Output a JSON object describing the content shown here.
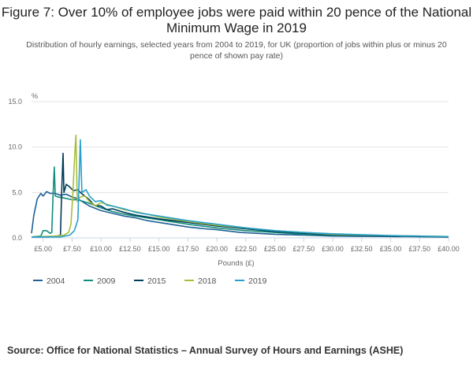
{
  "chart_data": {
    "type": "line",
    "title": "Figure 7: Over 10% of employee jobs were paid within 20 pence of the National Minimum Wage in 2019",
    "subtitle": "Distribution of hourly earnings, selected years from 2004 to 2019, for UK (proportion of jobs within plus or minus 20 pence of shown pay rate)",
    "xlabel": "Pounds (£)",
    "ylabel": "%",
    "xlim": [
      4,
      40
    ],
    "ylim": [
      0,
      15
    ],
    "x_ticks": [
      5,
      7.5,
      10,
      12.5,
      15,
      17.5,
      20,
      22.5,
      25,
      27.5,
      30,
      32.5,
      35,
      37.5,
      40
    ],
    "x_tick_labels": [
      "£5.00",
      "£7.50",
      "£10.00",
      "£12.50",
      "£15.00",
      "£17.50",
      "£20.00",
      "£22.50",
      "£25.00",
      "£27.50",
      "£30.00",
      "£32.50",
      "£35.00",
      "£37.50",
      "£40.00"
    ],
    "y_ticks": [
      0,
      5,
      10,
      15
    ],
    "y_tick_labels": [
      "0.0",
      "5.0",
      "10.0",
      "15.0"
    ],
    "grid": "horizontal",
    "legend": "bottom-left",
    "series": [
      {
        "name": "2004",
        "color": "#206095",
        "points": [
          [
            4,
            0.5
          ],
          [
            4.2,
            2.5
          ],
          [
            4.5,
            4.3
          ],
          [
            4.8,
            4.9
          ],
          [
            5.0,
            4.6
          ],
          [
            5.3,
            5.1
          ],
          [
            5.6,
            4.9
          ],
          [
            6,
            4.9
          ],
          [
            6.5,
            4.7
          ],
          [
            7,
            4.8
          ],
          [
            7.5,
            4.5
          ],
          [
            8,
            4.3
          ],
          [
            8.5,
            3.9
          ],
          [
            9,
            3.5
          ],
          [
            10,
            3.0
          ],
          [
            11,
            2.7
          ],
          [
            12,
            2.4
          ],
          [
            13,
            2.2
          ],
          [
            14,
            1.9
          ],
          [
            15,
            1.7
          ],
          [
            16,
            1.5
          ],
          [
            17.5,
            1.2
          ],
          [
            19,
            1.0
          ],
          [
            20,
            0.9
          ],
          [
            22,
            0.6
          ],
          [
            25,
            0.4
          ],
          [
            27.5,
            0.3
          ],
          [
            30,
            0.2
          ],
          [
            35,
            0.15
          ],
          [
            40,
            0.1
          ]
        ]
      },
      {
        "name": "2009",
        "color": "#118c7b",
        "points": [
          [
            4,
            0.1
          ],
          [
            4.8,
            0.2
          ],
          [
            5.0,
            0.8
          ],
          [
            5.3,
            0.8
          ],
          [
            5.6,
            0.5
          ],
          [
            5.75,
            0.6
          ],
          [
            5.85,
            4.5
          ],
          [
            5.97,
            7.8
          ],
          [
            6.05,
            4.6
          ],
          [
            6.3,
            4.5
          ],
          [
            6.8,
            4.4
          ],
          [
            7.5,
            4.2
          ],
          [
            8,
            4.2
          ],
          [
            8.5,
            4.0
          ],
          [
            9,
            3.8
          ],
          [
            10,
            3.3
          ],
          [
            11,
            2.9
          ],
          [
            12,
            2.6
          ],
          [
            13,
            2.4
          ],
          [
            15,
            2.0
          ],
          [
            17.5,
            1.5
          ],
          [
            20,
            1.1
          ],
          [
            22.5,
            0.8
          ],
          [
            25,
            0.6
          ],
          [
            27.5,
            0.4
          ],
          [
            30,
            0.3
          ],
          [
            35,
            0.2
          ],
          [
            40,
            0.1
          ]
        ]
      },
      {
        "name": "2015",
        "color": "#003c57",
        "points": [
          [
            4,
            0.1
          ],
          [
            5.5,
            0.1
          ],
          [
            6.2,
            0.2
          ],
          [
            6.5,
            0.3
          ],
          [
            6.6,
            5.0
          ],
          [
            6.72,
            9.3
          ],
          [
            6.8,
            5.0
          ],
          [
            7.0,
            5.9
          ],
          [
            7.3,
            5.6
          ],
          [
            7.6,
            5.2
          ],
          [
            8,
            5.3
          ],
          [
            8.3,
            4.9
          ],
          [
            8.6,
            4.6
          ],
          [
            9,
            4.2
          ],
          [
            9.4,
            3.6
          ],
          [
            10,
            3.5
          ],
          [
            10.5,
            3.1
          ],
          [
            11,
            3.2
          ],
          [
            12,
            2.8
          ],
          [
            13,
            2.5
          ],
          [
            15,
            2.1
          ],
          [
            17.5,
            1.7
          ],
          [
            20,
            1.3
          ],
          [
            22.5,
            1.0
          ],
          [
            25,
            0.7
          ],
          [
            27.5,
            0.5
          ],
          [
            30,
            0.35
          ],
          [
            35,
            0.2
          ],
          [
            40,
            0.1
          ]
        ]
      },
      {
        "name": "2018",
        "color": "#a8bd3a",
        "points": [
          [
            4,
            0.1
          ],
          [
            6,
            0.2
          ],
          [
            6.8,
            0.3
          ],
          [
            7.2,
            0.6
          ],
          [
            7.4,
            1.5
          ],
          [
            7.55,
            4.5
          ],
          [
            7.7,
            8.5
          ],
          [
            7.83,
            11.3
          ],
          [
            7.95,
            4.0
          ],
          [
            8.2,
            4.5
          ],
          [
            8.6,
            4.6
          ],
          [
            9,
            4.0
          ],
          [
            9.5,
            3.5
          ],
          [
            10,
            3.9
          ],
          [
            11,
            3.5
          ],
          [
            12,
            3.1
          ],
          [
            13,
            2.9
          ],
          [
            15,
            2.3
          ],
          [
            17.5,
            1.8
          ],
          [
            20,
            1.4
          ],
          [
            22.5,
            1.1
          ],
          [
            25,
            0.8
          ],
          [
            27.5,
            0.6
          ],
          [
            30,
            0.4
          ],
          [
            35,
            0.25
          ],
          [
            40,
            0.15
          ]
        ]
      },
      {
        "name": "2019",
        "color": "#27a0cc",
        "points": [
          [
            4,
            0.1
          ],
          [
            6.5,
            0.1
          ],
          [
            7.3,
            0.3
          ],
          [
            7.7,
            0.8
          ],
          [
            8.0,
            2.0
          ],
          [
            8.1,
            6.0
          ],
          [
            8.21,
            10.8
          ],
          [
            8.35,
            5.0
          ],
          [
            8.7,
            5.3
          ],
          [
            9.0,
            4.6
          ],
          [
            9.5,
            4.0
          ],
          [
            10,
            4.1
          ],
          [
            10.5,
            3.6
          ],
          [
            11,
            3.5
          ],
          [
            12,
            3.2
          ],
          [
            13,
            2.8
          ],
          [
            15,
            2.4
          ],
          [
            17.5,
            1.9
          ],
          [
            20,
            1.5
          ],
          [
            22.5,
            1.1
          ],
          [
            25,
            0.8
          ],
          [
            27.5,
            0.6
          ],
          [
            30,
            0.45
          ],
          [
            35,
            0.25
          ],
          [
            40,
            0.15
          ]
        ]
      }
    ]
  },
  "source": "Source: Office for National Statistics – Annual Survey of Hours and Earnings (ASHE)"
}
